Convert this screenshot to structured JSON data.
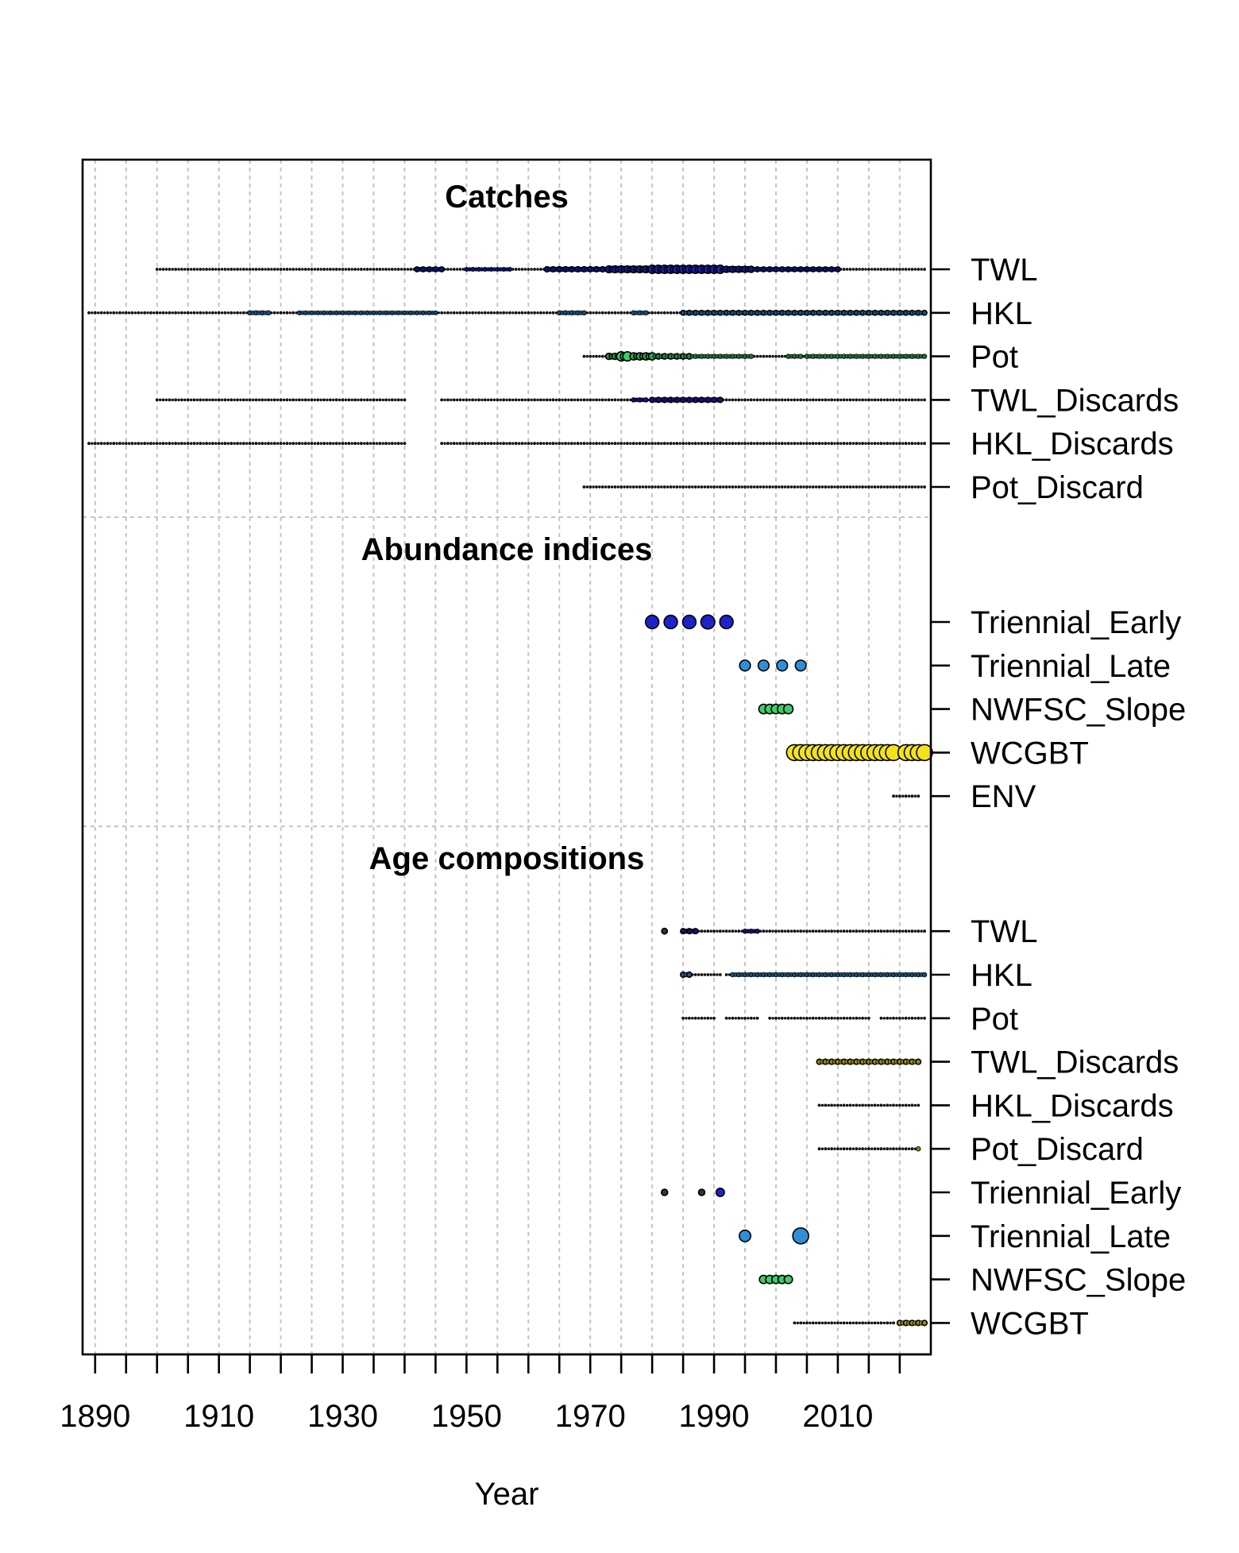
{
  "chart_data": {
    "type": "scatter",
    "subtype": "data-availability",
    "xlabel": "Year",
    "xlim": [
      1889,
      2024
    ],
    "x_ticks": [
      1890,
      1900,
      1910,
      1920,
      1930,
      1940,
      1950,
      1960,
      1970,
      1980,
      1990,
      2000,
      2010,
      2020
    ],
    "x_tick_labels": [
      "1890",
      "1910",
      "1930",
      "1950",
      "1970",
      "1990",
      "2010"
    ],
    "grid": true,
    "legend": "none",
    "palette": [
      "#1f22c9",
      "#2e8fd8",
      "#3ecb6b",
      "#f2e21b"
    ],
    "sections": [
      {
        "title": "Catches",
        "rows": [
          {
            "name": "TWL",
            "color": "#1f22c9",
            "segments": [
              [
                1900,
                2024
              ]
            ],
            "emphasis": [
              [
                1942,
                1946,
                0.35
              ],
              [
                1950,
                1957,
                0.25
              ],
              [
                1963,
                1973,
                0.4
              ],
              [
                1973,
                1980,
                0.65
              ],
              [
                1980,
                1991,
                0.85
              ],
              [
                1991,
                1996,
                0.55
              ],
              [
                1996,
                2010,
                0.35
              ]
            ]
          },
          {
            "name": "HKL",
            "color": "#2e8fd8",
            "segments": [
              [
                1889,
                2024
              ]
            ],
            "emphasis": [
              [
                1915,
                1918,
                0.3
              ],
              [
                1923,
                1945,
                0.25
              ],
              [
                1965,
                1969,
                0.3
              ],
              [
                1977,
                1979,
                0.3
              ],
              [
                1985,
                2024,
                0.35
              ]
            ]
          },
          {
            "name": "Pot",
            "color": "#3ecb6b",
            "segments": [
              [
                1969,
                2024
              ]
            ],
            "emphasis": [
              [
                1973,
                1975,
                0.55
              ],
              [
                1975,
                1976,
                1.0
              ],
              [
                1977,
                1980,
                0.7
              ],
              [
                1980,
                1986,
                0.45
              ],
              [
                1986,
                1996,
                0.3
              ],
              [
                2002,
                2004,
                0.3
              ],
              [
                2005,
                2024,
                0.3
              ]
            ]
          },
          {
            "name": "TWL_Discards",
            "color": "#1f22c9",
            "segments": [
              [
                1900,
                1940
              ],
              [
                1946,
                2024
              ]
            ],
            "emphasis": [
              [
                1977,
                1979,
                0.3
              ],
              [
                1980,
                1991,
                0.4
              ]
            ]
          },
          {
            "name": "HKL_Discards",
            "color": "#2e8fd8",
            "segments": [
              [
                1889,
                1940
              ],
              [
                1946,
                2024
              ]
            ],
            "emphasis": []
          },
          {
            "name": "Pot_Discard",
            "color": "#3ecb6b",
            "segments": [
              [
                1969,
                2024
              ]
            ],
            "emphasis": []
          }
        ]
      },
      {
        "title": "Abundance indices",
        "rows": [
          {
            "name": "Triennial_Early",
            "color": "#1f22c9",
            "points": [
              [
                1980,
                0.8
              ],
              [
                1983,
                0.8
              ],
              [
                1986,
                0.8
              ],
              [
                1989,
                0.85
              ],
              [
                1992,
                0.8
              ]
            ]
          },
          {
            "name": "Triennial_Late",
            "color": "#2e8fd8",
            "points": [
              [
                1995,
                0.6
              ],
              [
                1998,
                0.6
              ],
              [
                2001,
                0.6
              ],
              [
                2004,
                0.6
              ]
            ]
          },
          {
            "name": "NWFSC_Slope",
            "color": "#3ecb6b",
            "points": [
              [
                1998,
                0.5
              ],
              [
                1999,
                0.5
              ],
              [
                2000,
                0.5
              ],
              [
                2001,
                0.5
              ],
              [
                2002,
                0.5
              ]
            ]
          },
          {
            "name": "WCGBT",
            "color": "#f2e21b",
            "points": [
              [
                2003,
                1.0
              ],
              [
                2004,
                1.0
              ],
              [
                2005,
                1.0
              ],
              [
                2006,
                1.0
              ],
              [
                2007,
                1.0
              ],
              [
                2008,
                1.0
              ],
              [
                2009,
                1.0
              ],
              [
                2010,
                1.0
              ],
              [
                2011,
                1.0
              ],
              [
                2012,
                1.0
              ],
              [
                2013,
                1.0
              ],
              [
                2014,
                1.0
              ],
              [
                2015,
                1.0
              ],
              [
                2016,
                1.0
              ],
              [
                2017,
                1.0
              ],
              [
                2018,
                1.0
              ],
              [
                2019,
                1.0
              ],
              [
                2021,
                1.0
              ],
              [
                2022,
                1.0
              ],
              [
                2023,
                1.0
              ],
              [
                2024,
                1.0
              ]
            ]
          },
          {
            "name": "ENV",
            "color": "#f2e21b",
            "segments": [
              [
                2019,
                2023
              ]
            ],
            "emphasis": []
          }
        ]
      },
      {
        "title": "Age compositions",
        "rows": [
          {
            "name": "TWL",
            "color": "#1f22c9",
            "points": [
              [
                1982,
                0.2
              ]
            ],
            "segments": [
              [
                1985,
                2024
              ]
            ],
            "emphasis": [
              [
                1985,
                1987,
                0.4
              ],
              [
                1995,
                1997,
                0.3
              ]
            ]
          },
          {
            "name": "HKL",
            "color": "#2e8fd8",
            "segments": [
              [
                1985,
                1991
              ],
              [
                1992,
                2024
              ]
            ],
            "emphasis": [
              [
                1985,
                1986,
                0.4
              ],
              [
                1993,
                2024,
                0.3
              ]
            ]
          },
          {
            "name": "Pot",
            "color": "#3ecb6b",
            "segments": [
              [
                1985,
                1990
              ],
              [
                1992,
                1997
              ],
              [
                1999,
                2015
              ],
              [
                2017,
                2024
              ]
            ],
            "emphasis": []
          },
          {
            "name": "TWL_Discards",
            "color": "#f2e21b",
            "segments": [
              [
                2007,
                2023
              ]
            ],
            "emphasis": [
              [
                2007,
                2023,
                0.4
              ]
            ]
          },
          {
            "name": "HKL_Discards",
            "color": "#f2e21b",
            "segments": [
              [
                2007,
                2023
              ]
            ],
            "emphasis": []
          },
          {
            "name": "Pot_Discard",
            "color": "#f2e21b",
            "segments": [
              [
                2007,
                2023
              ]
            ],
            "emphasis": [
              [
                2023,
                2023,
                0.3
              ]
            ]
          },
          {
            "name": "Triennial_Early",
            "color": "#1f22c9",
            "points": [
              [
                1982,
                0.25
              ],
              [
                1988,
                0.25
              ],
              [
                1991,
                0.4
              ]
            ]
          },
          {
            "name": "Triennial_Late",
            "color": "#2e8fd8",
            "points": [
              [
                1995,
                0.65
              ],
              [
                2004,
                1.0
              ]
            ]
          },
          {
            "name": "NWFSC_Slope",
            "color": "#3ecb6b",
            "points": [
              [
                1998,
                0.4
              ],
              [
                1999,
                0.4
              ],
              [
                2000,
                0.4
              ],
              [
                2001,
                0.4
              ],
              [
                2002,
                0.4
              ]
            ]
          },
          {
            "name": "WCGBT",
            "color": "#f2e21b",
            "segments": [
              [
                2003,
                2019
              ],
              [
                2020,
                2024
              ]
            ],
            "emphasis": [
              [
                2020,
                2024,
                0.4
              ]
            ]
          }
        ]
      }
    ]
  }
}
